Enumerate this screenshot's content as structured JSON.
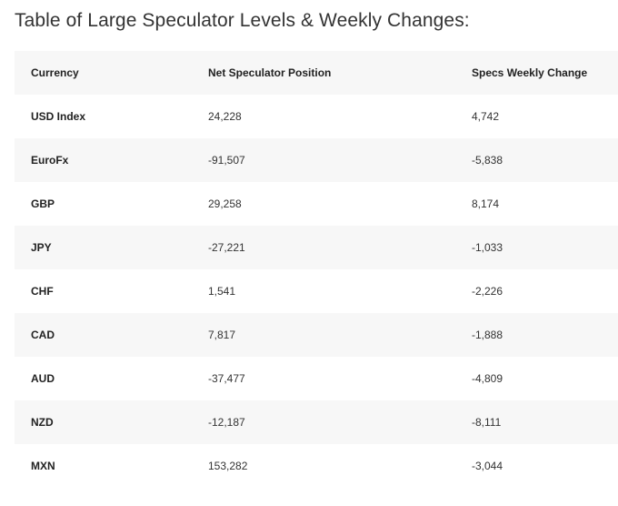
{
  "title": "Table of Large Speculator Levels & Weekly Changes:",
  "table": {
    "headers": [
      "Currency",
      "Net Speculator Position",
      "Specs Weekly Change"
    ],
    "rows": [
      {
        "currency": "USD Index",
        "position": "24,228",
        "change": "4,742"
      },
      {
        "currency": "EuroFx",
        "position": "-91,507",
        "change": "-5,838"
      },
      {
        "currency": "GBP",
        "position": "29,258",
        "change": "8,174"
      },
      {
        "currency": "JPY",
        "position": "-27,221",
        "change": "-1,033"
      },
      {
        "currency": "CHF",
        "position": "1,541",
        "change": "-2,226"
      },
      {
        "currency": "CAD",
        "position": "7,817",
        "change": "-1,888"
      },
      {
        "currency": "AUD",
        "position": "-37,477",
        "change": "-4,809"
      },
      {
        "currency": "NZD",
        "position": "-12,187",
        "change": "-8,111"
      },
      {
        "currency": "MXN",
        "position": "153,282",
        "change": "-3,044"
      }
    ]
  },
  "colors": {
    "stripe": "#f7f7f7",
    "text": "#222222"
  }
}
